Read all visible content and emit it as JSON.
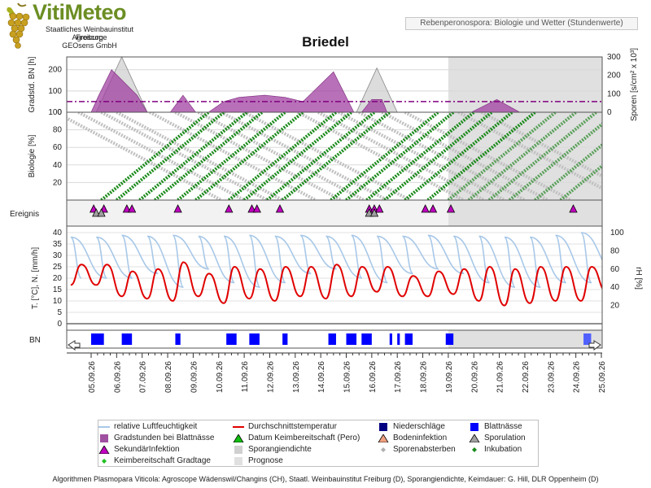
{
  "header": {
    "brand": "VitiMeteo",
    "org_lines": [
      "Staatliches Weinbauinstitut Freiburg",
      "Agroscope",
      "GEOsens GmbH"
    ],
    "subtitle": "Rebenperonospora: Biologie und Wetter (Stundenwerte)",
    "station": "Briedel"
  },
  "colors": {
    "bn_fill": "#a040a0",
    "spore_fill": "#d0d0d0",
    "threshold": "#800080",
    "inkubation": "#1a8a1a",
    "sporenabsterben": "#c0c0c0",
    "rh": "#a8c8e8",
    "temp": "#e00000",
    "blattnaesse": "#0000ff",
    "niederschlag": "#000080",
    "prognose_bg": "#e0e0e0",
    "sekundaer": "#c000c0",
    "sporulation": "#a0a0a0"
  },
  "chart_data": [
    {
      "type": "area",
      "name": "Gradstunden / Sporen",
      "ylabel_left": "Gradstd. BN [h]",
      "ylabel_right": "Sporen [s/cm² x 10³]",
      "y_left_ticks": [
        "0",
        "100",
        "200"
      ],
      "y_right_ticks": [
        "0",
        "100",
        "200",
        "300"
      ],
      "ylim_left": [
        0,
        260
      ],
      "ylim_right": [
        0,
        300
      ],
      "threshold": 50,
      "bn_series": [
        [
          0,
          0
        ],
        [
          0.3,
          80
        ],
        [
          0.8,
          200
        ],
        [
          1.8,
          80
        ],
        [
          2.2,
          0
        ],
        [
          3.1,
          0
        ],
        [
          3.6,
          80
        ],
        [
          4.1,
          0
        ],
        [
          4.6,
          0
        ],
        [
          5.2,
          50
        ],
        [
          5.8,
          70
        ],
        [
          6.8,
          80
        ],
        [
          7.6,
          70
        ],
        [
          8.3,
          50
        ],
        [
          9.5,
          190
        ],
        [
          10.3,
          0
        ],
        [
          10.6,
          0
        ],
        [
          11.0,
          60
        ],
        [
          11.4,
          60
        ],
        [
          11.6,
          0
        ],
        [
          14.9,
          0
        ],
        [
          15.9,
          60
        ],
        [
          16.8,
          0
        ]
      ],
      "spore_series": [
        [
          0.2,
          0
        ],
        [
          1.2,
          300
        ],
        [
          2.2,
          0
        ],
        [
          10.4,
          0
        ],
        [
          11.2,
          240
        ],
        [
          12.0,
          0
        ]
      ],
      "grid": true
    },
    {
      "type": "line",
      "name": "Biologie",
      "ylabel": "Biologie [%]",
      "y_ticks": [
        "20",
        "40",
        "60",
        "80",
        "100"
      ],
      "ylim": [
        0,
        100
      ],
      "inkubation_start_days": [
        0.4,
        1.0,
        1.9,
        2.5,
        3.4,
        4.1,
        5.4,
        6.0,
        6.9,
        7.5,
        9.4,
        10.0,
        10.8,
        11.5,
        12.3,
        13.2,
        14.0,
        14.8,
        15.6,
        16.4,
        17.4,
        18.4
      ],
      "inkubation_duration_days": 4.2,
      "sporenabsterben_start_days": [
        -1.4,
        -0.5,
        0.4,
        1.0,
        2.3,
        3.3,
        4.2,
        5.1,
        6.0,
        8.1,
        8.9,
        9.7,
        10.5,
        11.4,
        12.3,
        14.4,
        15.3
      ],
      "sporenabsterben_duration_days": 6.5
    },
    {
      "type": "scatter",
      "name": "Ereignis",
      "ylabel": "Ereignis",
      "sekundaerinfektion_days": [
        0.1,
        0.5,
        1.4,
        1.6,
        3.4,
        5.4,
        6.3,
        6.5,
        7.4,
        10.9,
        11.1,
        11.3,
        13.1,
        13.4,
        14.1,
        18.9
      ],
      "sporulation_days": [
        0.2,
        0.4,
        10.9,
        11.1
      ]
    },
    {
      "type": "line",
      "name": "Temperatur / Feuchte",
      "ylabel_left": "T. [°C], N. [mm/h]",
      "ylabel_right": "rH [%]",
      "y_left_ticks": [
        "0",
        "5",
        "10",
        "15",
        "20",
        "25",
        "30",
        "35",
        "40"
      ],
      "y_right_ticks": [
        "20",
        "40",
        "60",
        "80",
        "100"
      ],
      "ylim_left": [
        0,
        40
      ],
      "ylim_right": [
        0,
        100
      ],
      "temp_max": [
        26,
        23,
        24,
        27,
        22,
        25,
        24,
        25,
        25,
        26,
        25,
        25,
        21,
        23,
        24,
        25,
        24,
        25,
        25,
        25,
        24
      ],
      "temp_min": [
        17,
        12,
        11,
        10,
        12,
        9,
        11,
        10,
        12,
        11,
        12,
        14,
        12,
        12,
        13,
        10,
        8,
        9,
        10,
        10,
        14
      ],
      "rh_max": [
        95,
        97,
        96,
        97,
        96,
        96,
        97,
        96,
        97,
        96,
        97,
        96,
        96,
        97,
        96,
        96,
        95,
        95,
        97,
        100,
        96
      ],
      "rh_min": [
        50,
        50,
        55,
        40,
        60,
        45,
        40,
        45,
        55,
        60,
        50,
        45,
        55,
        60,
        55,
        45,
        40,
        40,
        45,
        45,
        55
      ]
    },
    {
      "type": "bar",
      "name": "Blattnässe",
      "ylabel": "BN",
      "wet_intervals_days": [
        [
          0.0,
          0.5
        ],
        [
          1.2,
          1.6
        ],
        [
          3.3,
          3.5
        ],
        [
          5.3,
          5.7
        ],
        [
          6.2,
          6.6
        ],
        [
          7.5,
          7.7
        ],
        [
          9.3,
          9.6
        ],
        [
          10.0,
          10.4
        ],
        [
          10.6,
          11.0
        ],
        [
          11.7,
          11.8
        ],
        [
          12.0,
          12.1
        ],
        [
          12.3,
          12.6
        ],
        [
          13.9,
          14.2
        ],
        [
          19.3,
          19.6
        ]
      ],
      "prognose_from_index": 14
    }
  ],
  "x_axis": {
    "dates": [
      "05.09.26",
      "06.09.26",
      "07.09.26",
      "08.09.26",
      "09.09.26",
      "10.09.26",
      "11.09.26",
      "12.09.26",
      "13.09.26",
      "14.09.26",
      "15.09.26",
      "16.09.26",
      "17.09.26",
      "18.09.26",
      "19.09.26",
      "20.09.26",
      "21.09.26",
      "22.09.26",
      "23.09.26",
      "24.09.26",
      "25.09.26"
    ],
    "prognose_start": "19.09.26"
  },
  "legend": {
    "items": [
      {
        "label": "relative Luftfeuchtigkeit",
        "symbol": "line",
        "color": "#a8c8e8"
      },
      {
        "label": "Durchschnittstemperatur",
        "symbol": "line",
        "color": "#e00000"
      },
      {
        "label": "Niederschläge",
        "symbol": "square",
        "color": "#000080"
      },
      {
        "label": "Blattnässe",
        "symbol": "square",
        "color": "#0000ff"
      },
      {
        "label": "Gradstunden bei Blattnässe",
        "symbol": "square",
        "color": "#a050a0"
      },
      {
        "label": "Datum Keimbereitschaft (Pero)",
        "symbol": "triangle",
        "color": "#10c010"
      },
      {
        "label": "Bodeninfektion",
        "symbol": "triangle",
        "color": "#f0a080"
      },
      {
        "label": "Sporulation",
        "symbol": "triangle",
        "color": "#a0a0a0"
      },
      {
        "label": "SekundärInfektion",
        "symbol": "triangle",
        "color": "#c000c0"
      },
      {
        "label": "Sporangiendichte",
        "symbol": "square",
        "color": "#d0d0d0"
      },
      {
        "label": "Sporenabsterben",
        "symbol": "diamond",
        "color": "#b0b0b0"
      },
      {
        "label": "Inkubation",
        "symbol": "diamond",
        "color": "#1a8a1a"
      },
      {
        "label": "Keimbereitschaft Gradtage",
        "symbol": "diamond",
        "color": "#20c020"
      },
      {
        "label": "Prognose",
        "symbol": "square",
        "color": "#e0e0e0"
      }
    ]
  },
  "footer": {
    "text": "Algorithmen Plasmopara Viticola: Agroscope Wädenswil/Changins (CH), Staatl. Weinbauinstitut Freiburg (D), Sporangiendichte, Keimdauer: G. Hill, DLR Oppenheim (D)"
  }
}
